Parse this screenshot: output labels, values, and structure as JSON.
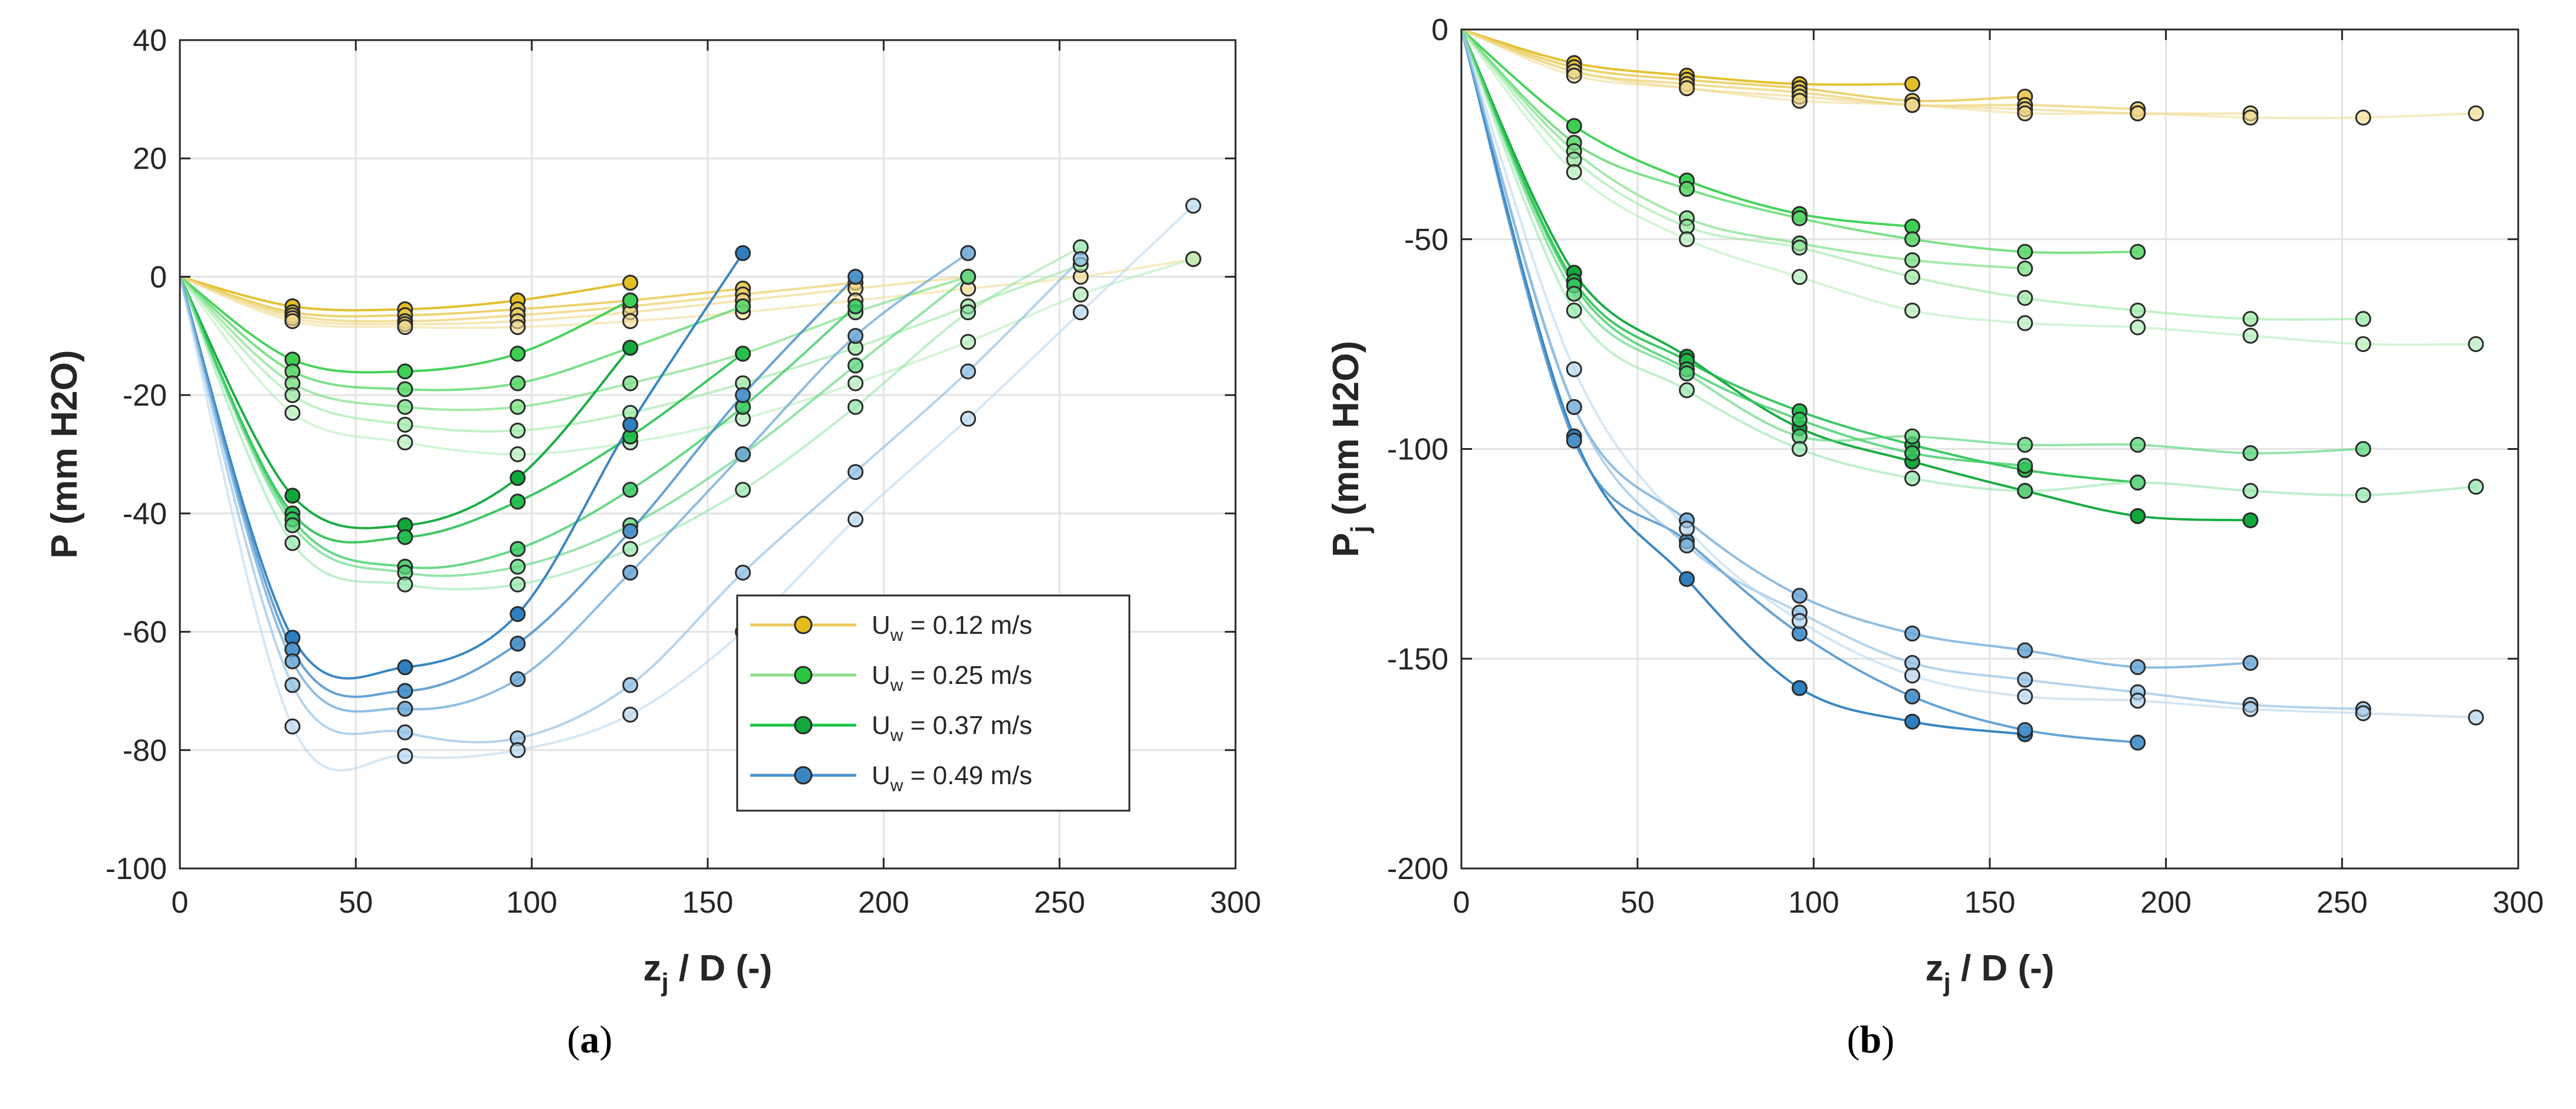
{
  "chart_data": [
    {
      "id": "a",
      "type": "scatter",
      "panel_label": "a",
      "xlabel": "z",
      "xlabel_sub": "j",
      "xlabel_rest": " / D (-)",
      "ylabel": "P (mm H2O)",
      "xlim": [
        0,
        300
      ],
      "ylim": [
        -100,
        40
      ],
      "xticks": [
        0,
        50,
        100,
        150,
        200,
        250,
        300
      ],
      "yticks": [
        -100,
        -80,
        -60,
        -40,
        -20,
        0,
        20,
        40
      ],
      "grid": true,
      "legend": {
        "placement": "lower-right",
        "entries": [
          {
            "prefix": "U",
            "sub": "w",
            "suffix": " = 0.12 m/s",
            "line": "#EBCB5F",
            "marker": "#E4BC1B"
          },
          {
            "prefix": "U",
            "sub": "w",
            "suffix": " = 0.25 m/s",
            "line": "#8EE08A",
            "marker": "#2BC53F"
          },
          {
            "prefix": "U",
            "sub": "w",
            "suffix": " = 0.37 m/s",
            "line": "#1FC54B",
            "marker": "#13A83B"
          },
          {
            "prefix": "U",
            "sub": "w",
            "suffix": " = 0.49 m/s",
            "line": "#4A94CF",
            "marker": "#3A86C4"
          }
        ]
      },
      "series": [
        {
          "group": "0.12",
          "color": "#E3BE25",
          "alpha": 0.95,
          "x": [
            0,
            32,
            64,
            96,
            128
          ],
          "y": [
            0,
            -5,
            -5.5,
            -4,
            -1
          ]
        },
        {
          "group": "0.12",
          "color": "#E8C84E",
          "alpha": 0.8,
          "x": [
            0,
            32,
            64,
            96,
            128,
            160
          ],
          "y": [
            0,
            -6,
            -6.5,
            -5.5,
            -4,
            -2
          ]
        },
        {
          "group": "0.12",
          "color": "#ECD06A",
          "alpha": 0.7,
          "x": [
            0,
            32,
            64,
            96,
            128,
            160,
            192
          ],
          "y": [
            0,
            -6.5,
            -7.5,
            -6.5,
            -5,
            -3,
            -1
          ]
        },
        {
          "group": "0.12",
          "color": "#EFD685",
          "alpha": 0.6,
          "x": [
            0,
            32,
            64,
            96,
            128,
            160,
            192,
            224
          ],
          "y": [
            0,
            -7,
            -8,
            -7.5,
            -6,
            -4,
            -2,
            0
          ]
        },
        {
          "group": "0.12",
          "color": "#F1DA92",
          "alpha": 0.55,
          "x": [
            0,
            32,
            64,
            96,
            128,
            160,
            192,
            224,
            256,
            288
          ],
          "y": [
            0,
            -7.5,
            -8.5,
            -8.5,
            -7.5,
            -6,
            -4,
            -2,
            0,
            3
          ]
        },
        {
          "group": "0.25",
          "color": "#3DD052",
          "alpha": 0.95,
          "x": [
            0,
            32,
            64,
            96,
            128
          ],
          "y": [
            0,
            -14,
            -16,
            -13,
            -4
          ]
        },
        {
          "group": "0.25",
          "color": "#5DD86B",
          "alpha": 0.8,
          "x": [
            0,
            32,
            64,
            96,
            128,
            160
          ],
          "y": [
            0,
            -16,
            -19,
            -18,
            -12,
            -5
          ]
        },
        {
          "group": "0.25",
          "color": "#7EE088",
          "alpha": 0.7,
          "x": [
            0,
            32,
            64,
            96,
            128,
            160,
            192,
            224
          ],
          "y": [
            0,
            -18,
            -22,
            -22,
            -18,
            -13,
            -6,
            0
          ]
        },
        {
          "group": "0.25",
          "color": "#9AE7A1",
          "alpha": 0.6,
          "x": [
            0,
            32,
            64,
            96,
            128,
            160,
            192,
            224,
            256
          ],
          "y": [
            0,
            -20,
            -25,
            -26,
            -23,
            -18,
            -12,
            -5,
            2
          ]
        },
        {
          "group": "0.25",
          "color": "#B0ECB5",
          "alpha": 0.55,
          "x": [
            0,
            32,
            64,
            96,
            128,
            160,
            192,
            224,
            256,
            288
          ],
          "y": [
            0,
            -23,
            -28,
            -30,
            -28,
            -24,
            -18,
            -11,
            -3,
            3
          ]
        },
        {
          "group": "0.37",
          "color": "#10A83A",
          "alpha": 0.95,
          "x": [
            0,
            32,
            64,
            96,
            128
          ],
          "y": [
            0,
            -37,
            -42,
            -34,
            -12
          ]
        },
        {
          "group": "0.37",
          "color": "#1DBD48",
          "alpha": 0.85,
          "x": [
            0,
            32,
            64,
            96,
            128,
            160
          ],
          "y": [
            0,
            -40,
            -44,
            -38,
            -27,
            -13
          ]
        },
        {
          "group": "0.37",
          "color": "#34C95E",
          "alpha": 0.75,
          "x": [
            0,
            32,
            64,
            96,
            128,
            160,
            192
          ],
          "y": [
            0,
            -41,
            -49,
            -46,
            -36,
            -22,
            -5
          ]
        },
        {
          "group": "0.37",
          "color": "#5BD57C",
          "alpha": 0.65,
          "x": [
            0,
            32,
            64,
            96,
            128,
            160,
            192,
            224
          ],
          "y": [
            0,
            -42,
            -50,
            -49,
            -42,
            -30,
            -15,
            0
          ]
        },
        {
          "group": "0.37",
          "color": "#8AE3A2",
          "alpha": 0.55,
          "x": [
            0,
            32,
            64,
            96,
            128,
            160,
            192,
            224,
            256
          ],
          "y": [
            0,
            -45,
            -52,
            -52,
            -46,
            -36,
            -22,
            -6,
            5
          ]
        },
        {
          "group": "0.49",
          "color": "#2E7FBF",
          "alpha": 0.95,
          "x": [
            0,
            32,
            64,
            96,
            128,
            160
          ],
          "y": [
            0,
            -61,
            -66,
            -57,
            -25,
            4
          ]
        },
        {
          "group": "0.49",
          "color": "#4A92CC",
          "alpha": 0.85,
          "x": [
            0,
            32,
            64,
            96,
            128,
            160,
            192
          ],
          "y": [
            0,
            -63,
            -70,
            -62,
            -43,
            -20,
            0
          ]
        },
        {
          "group": "0.49",
          "color": "#6AA7D7",
          "alpha": 0.75,
          "x": [
            0,
            32,
            64,
            96,
            128,
            160,
            192,
            224
          ],
          "y": [
            0,
            -65,
            -73,
            -68,
            -50,
            -30,
            -10,
            4
          ]
        },
        {
          "group": "0.49",
          "color": "#8EBDE2",
          "alpha": 0.65,
          "x": [
            0,
            32,
            64,
            96,
            128,
            160,
            192,
            224,
            256
          ],
          "y": [
            0,
            -69,
            -77,
            -78,
            -69,
            -50,
            -33,
            -16,
            3
          ]
        },
        {
          "group": "0.49",
          "color": "#B2D3EC",
          "alpha": 0.55,
          "x": [
            0,
            32,
            64,
            96,
            128,
            160,
            192,
            224,
            256,
            288
          ],
          "y": [
            0,
            -76,
            -81,
            -80,
            -74,
            -60,
            -41,
            -24,
            -6,
            12
          ]
        }
      ]
    },
    {
      "id": "b",
      "type": "scatter",
      "panel_label": "b",
      "xlabel": "z",
      "xlabel_sub": "j",
      "xlabel_rest": " / D (-)",
      "ylabel": "P",
      "ylabel_sub": "j",
      "ylabel_rest": " (mm H2O)",
      "xlim": [
        0,
        300
      ],
      "ylim": [
        -200,
        0
      ],
      "xticks": [
        0,
        50,
        100,
        150,
        200,
        250,
        300
      ],
      "yticks": [
        -200,
        -150,
        -100,
        -50,
        0
      ],
      "grid": true,
      "series": [
        {
          "group": "0.12",
          "color": "#E3BE25",
          "alpha": 0.95,
          "x": [
            0,
            32,
            64,
            96,
            128
          ],
          "y": [
            0,
            -8,
            -11,
            -13,
            -13
          ]
        },
        {
          "group": "0.12",
          "color": "#E8C84E",
          "alpha": 0.8,
          "x": [
            0,
            32,
            64,
            96,
            128,
            160
          ],
          "y": [
            0,
            -9,
            -12,
            -14,
            -17,
            -16
          ]
        },
        {
          "group": "0.12",
          "color": "#ECD06A",
          "alpha": 0.7,
          "x": [
            0,
            32,
            64,
            96,
            128,
            160,
            192
          ],
          "y": [
            0,
            -10,
            -13,
            -15,
            -18,
            -18,
            -19
          ]
        },
        {
          "group": "0.12",
          "color": "#EFD685",
          "alpha": 0.6,
          "x": [
            0,
            32,
            64,
            96,
            128,
            160,
            192,
            224
          ],
          "y": [
            0,
            -10,
            -14,
            -16,
            -18,
            -19,
            -20,
            -20
          ]
        },
        {
          "group": "0.12",
          "color": "#F1DA92",
          "alpha": 0.55,
          "x": [
            0,
            32,
            64,
            96,
            128,
            160,
            192,
            224,
            256,
            288
          ],
          "y": [
            0,
            -11,
            -14,
            -17,
            -18,
            -20,
            -20,
            -21,
            -21,
            -20
          ]
        },
        {
          "group": "0.25",
          "color": "#3DD052",
          "alpha": 0.95,
          "x": [
            0,
            32,
            64,
            96,
            128
          ],
          "y": [
            0,
            -23,
            -36,
            -44,
            -47
          ]
        },
        {
          "group": "0.25",
          "color": "#5DD86B",
          "alpha": 0.8,
          "x": [
            0,
            32,
            64,
            96,
            128,
            160,
            192
          ],
          "y": [
            0,
            -27,
            -38,
            -45,
            -50,
            -53,
            -53
          ]
        },
        {
          "group": "0.25",
          "color": "#7EE088",
          "alpha": 0.7,
          "x": [
            0,
            32,
            64,
            96,
            128,
            160
          ],
          "y": [
            0,
            -29,
            -45,
            -51,
            -55,
            -57
          ]
        },
        {
          "group": "0.25",
          "color": "#9AE7A1",
          "alpha": 0.6,
          "x": [
            0,
            32,
            64,
            96,
            128,
            160,
            192,
            224,
            256
          ],
          "y": [
            0,
            -31,
            -47,
            -52,
            -59,
            -64,
            -67,
            -69,
            -69
          ]
        },
        {
          "group": "0.25",
          "color": "#B0ECB5",
          "alpha": 0.55,
          "x": [
            0,
            32,
            64,
            96,
            128,
            160,
            192,
            224,
            256,
            288
          ],
          "y": [
            0,
            -34,
            -50,
            -59,
            -67,
            -70,
            -71,
            -73,
            -75,
            -75
          ]
        },
        {
          "group": "0.37",
          "color": "#10A83A",
          "alpha": 0.95,
          "x": [
            0,
            32,
            64,
            96,
            128,
            160,
            192,
            224
          ],
          "y": [
            0,
            -58,
            -78,
            -95,
            -103,
            -110,
            -116,
            -117
          ]
        },
        {
          "group": "0.37",
          "color": "#1DBD48",
          "alpha": 0.85,
          "x": [
            0,
            32,
            64,
            96,
            128,
            160,
            192
          ],
          "y": [
            0,
            -60,
            -79,
            -91,
            -99,
            -105,
            -108
          ]
        },
        {
          "group": "0.37",
          "color": "#34C95E",
          "alpha": 0.75,
          "x": [
            0,
            32,
            64,
            96,
            128,
            160
          ],
          "y": [
            0,
            -61,
            -81,
            -93,
            -101,
            -104
          ]
        },
        {
          "group": "0.37",
          "color": "#5BD57C",
          "alpha": 0.65,
          "x": [
            0,
            32,
            64,
            96,
            128,
            160,
            192,
            224,
            256
          ],
          "y": [
            0,
            -63,
            -82,
            -97,
            -97,
            -99,
            -99,
            -101,
            -100
          ]
        },
        {
          "group": "0.37",
          "color": "#8AE3A2",
          "alpha": 0.55,
          "x": [
            0,
            32,
            64,
            96,
            128,
            160,
            192,
            224,
            256,
            288
          ],
          "y": [
            0,
            -67,
            -86,
            -100,
            -107,
            -110,
            -108,
            -110,
            -111,
            -109
          ]
        },
        {
          "group": "0.49",
          "color": "#2E7FBF",
          "alpha": 0.95,
          "x": [
            0,
            32,
            64,
            96,
            128,
            160
          ],
          "y": [
            0,
            -97,
            -131,
            -157,
            -165,
            -168
          ]
        },
        {
          "group": "0.49",
          "color": "#4A92CC",
          "alpha": 0.85,
          "x": [
            0,
            32,
            64,
            96,
            128,
            160,
            192
          ],
          "y": [
            0,
            -98,
            -122,
            -144,
            -159,
            -167,
            -170
          ]
        },
        {
          "group": "0.49",
          "color": "#6AA7D7",
          "alpha": 0.75,
          "x": [
            0,
            32,
            64,
            96,
            128,
            160,
            192,
            224
          ],
          "y": [
            0,
            -90,
            -117,
            -135,
            -144,
            -148,
            -152,
            -151
          ]
        },
        {
          "group": "0.49",
          "color": "#8EBDE2",
          "alpha": 0.65,
          "x": [
            0,
            32,
            64,
            96,
            128,
            160,
            192,
            224,
            256
          ],
          "y": [
            0,
            -90,
            -123,
            -139,
            -151,
            -155,
            -158,
            -161,
            -162
          ]
        },
        {
          "group": "0.49",
          "color": "#B2D3EC",
          "alpha": 0.55,
          "x": [
            0,
            32,
            64,
            96,
            128,
            160,
            192,
            224,
            256,
            288
          ],
          "y": [
            0,
            -81,
            -119,
            -141,
            -154,
            -159,
            -160,
            -162,
            -163,
            -164
          ]
        }
      ]
    }
  ]
}
